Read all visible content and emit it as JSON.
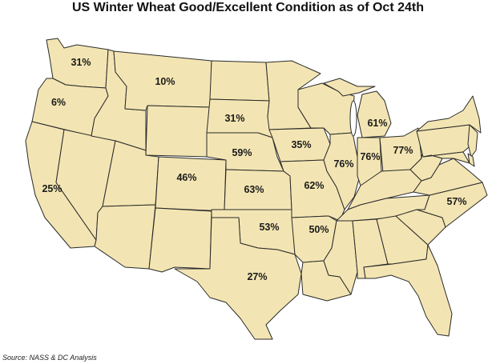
{
  "title": "US Winter Wheat Good/Excellent Condition as of Oct 24th",
  "source": "Source: NASS & DC Analysis",
  "colors": {
    "state_fill": "#f3e5b3",
    "border": "#2a2a2a"
  },
  "condition_labels": [
    {
      "state": "WA",
      "label": "31%"
    },
    {
      "state": "OR",
      "label": "6%"
    },
    {
      "state": "MT",
      "label": "10%"
    },
    {
      "state": "SD",
      "label": "31%"
    },
    {
      "state": "NE",
      "label": "59%"
    },
    {
      "state": "CO",
      "label": "46%"
    },
    {
      "state": "KS",
      "label": "63%"
    },
    {
      "state": "CA",
      "label": "25%"
    },
    {
      "state": "IA",
      "label": "35%"
    },
    {
      "state": "MO",
      "label": "62%"
    },
    {
      "state": "IL",
      "label": "76%"
    },
    {
      "state": "IN",
      "label": "76%"
    },
    {
      "state": "OH",
      "label": "77%"
    },
    {
      "state": "MI",
      "label": "61%"
    },
    {
      "state": "OK",
      "label": "53%"
    },
    {
      "state": "AR",
      "label": "50%"
    },
    {
      "state": "TX",
      "label": "27%"
    },
    {
      "state": "NC",
      "label": "57%"
    }
  ]
}
